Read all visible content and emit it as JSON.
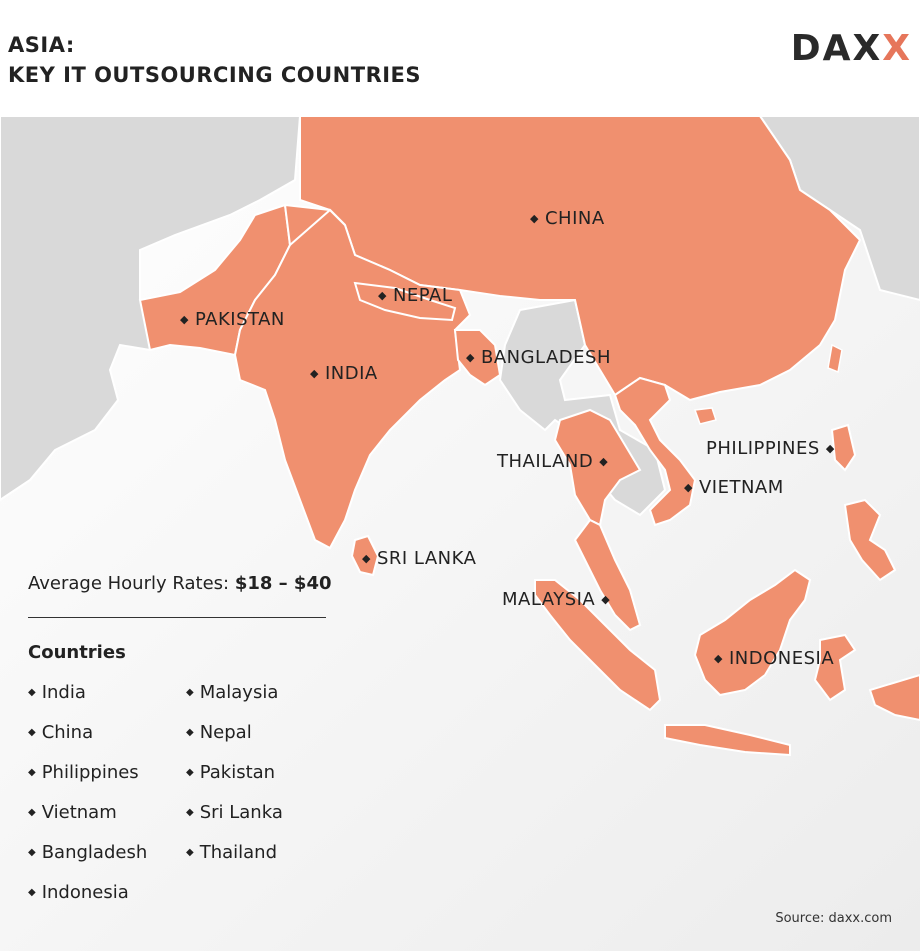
{
  "header": {
    "title_line1": "ASIA:",
    "title_line2": "KEY IT OUTSOURCING COUNTRIES",
    "logo_main": "DAX",
    "logo_accent": "X"
  },
  "map_labels": {
    "china": "CHINA",
    "nepal": "NEPAL",
    "pakistan": "PAKISTAN",
    "bangladesh": "BANGLADESH",
    "india": "INDIA",
    "philippines": "PHILIPPINES",
    "thailand": "THAILAND",
    "vietnam": "VIETNAM",
    "sri_lanka": "SRI LANKA",
    "malaysia": "MALAYSIA",
    "indonesia": "INDONESIA"
  },
  "rates": {
    "label": "Average Hourly Rates: ",
    "value": "$18 – $40"
  },
  "countries": {
    "title": "Countries",
    "col1": [
      "India",
      "China",
      "Philippines",
      "Vietnam",
      "Bangladesh",
      "Indonesia"
    ],
    "col2": [
      "Malaysia",
      "Nepal",
      "Pakistan",
      "Sri Lanka",
      "Thailand"
    ]
  },
  "source": "Source: daxx.com",
  "colors": {
    "highlight": "#f0906f",
    "land": "#d9d9d9",
    "border": "#ffffff",
    "accent": "#e6765b"
  }
}
